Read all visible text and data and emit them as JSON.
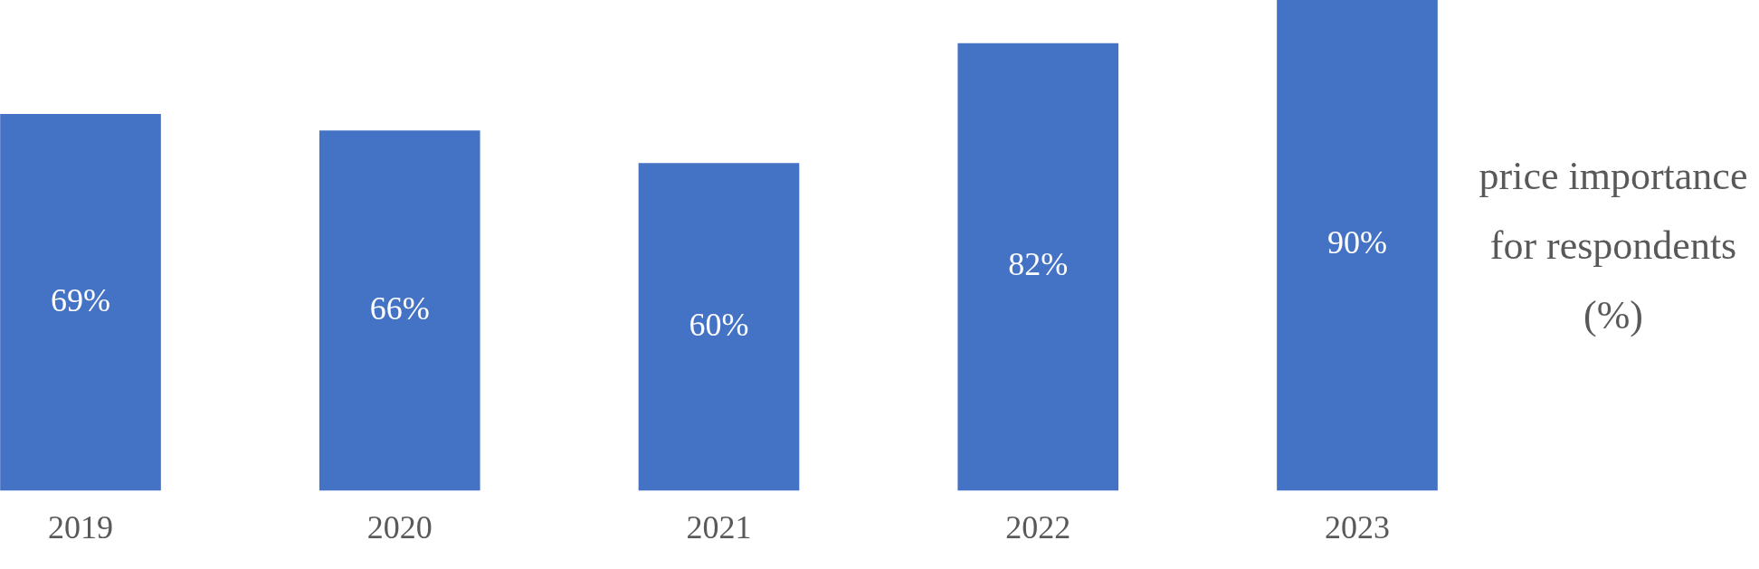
{
  "chart_data": {
    "type": "bar",
    "ylabel": "price importance for respondents (%)",
    "categories": [
      "2019",
      "2020",
      "2021",
      "2022",
      "2023"
    ],
    "values": [
      69,
      66,
      60,
      82,
      90
    ],
    "value_labels": [
      "69%",
      "66%",
      "60%",
      "82%",
      "90%"
    ],
    "color": "#4472c4",
    "grid": false,
    "legend": false
  }
}
